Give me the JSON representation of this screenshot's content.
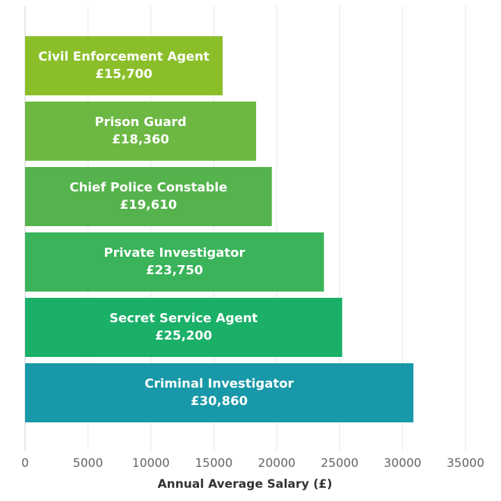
{
  "chart_data": {
    "type": "bar",
    "orientation": "horizontal",
    "categories": [
      "Civil Enforcement Agent",
      "Prison Guard",
      "Chief Police Constable",
      "Private Investigator",
      "Secret Service Agent",
      "Criminal Investigator"
    ],
    "values": [
      15700,
      18360,
      19610,
      23750,
      25200,
      30860
    ],
    "value_labels": [
      "£15,700",
      "£18,360",
      "£19,610",
      "£23,750",
      "£25,200",
      "£30,860"
    ],
    "colors": [
      "#8bbf2a",
      "#6cb842",
      "#55b34d",
      "#3ab35a",
      "#1ab068",
      "#1898a8"
    ],
    "xlabel": "Annual Average Salary (£)",
    "xlim": [
      0,
      35000
    ],
    "xticks": [
      "0",
      "5000",
      "10000",
      "15000",
      "20000",
      "25000",
      "30000",
      "35000"
    ],
    "grid": "vertical"
  }
}
